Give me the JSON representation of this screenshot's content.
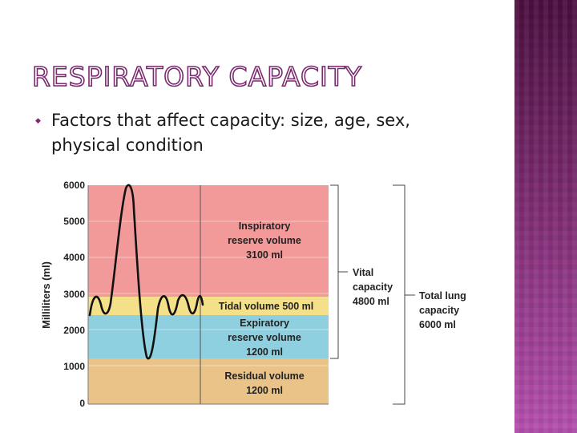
{
  "slide": {
    "title": "RESPIRATORY CAPACITY",
    "bullet_lines": [
      "Factors that affect capacity: size, age, sex,",
      "physical condition"
    ]
  },
  "diagram": {
    "y_axis_label": "Milliliters (ml)",
    "ticks": [
      "6000",
      "5000",
      "4000",
      "3000",
      "2000",
      "1000",
      "0"
    ],
    "zones": {
      "inspiratory": {
        "label": [
          "Inspiratory",
          "reserve volume",
          "3100 ml"
        ],
        "color": "#f29a9a"
      },
      "tidal": {
        "label": "Tidal volume 500 ml",
        "color": "#f5e08a"
      },
      "expiratory": {
        "label": [
          "Expiratory",
          "reserve volume",
          "1200 ml"
        ],
        "color": "#8fd0e0"
      },
      "residual": {
        "label": [
          "Residual volume",
          "1200 ml"
        ],
        "color": "#e9c387"
      }
    },
    "vital_capacity": [
      "Vital",
      "capacity",
      "4800 ml"
    ],
    "total_lung_capacity": [
      "Total lung",
      "capacity",
      "6000 ml"
    ]
  },
  "colors": {
    "accent": "#7a2a6e",
    "band_top": "#4a0f3e",
    "band_bottom": "#b44fae"
  }
}
